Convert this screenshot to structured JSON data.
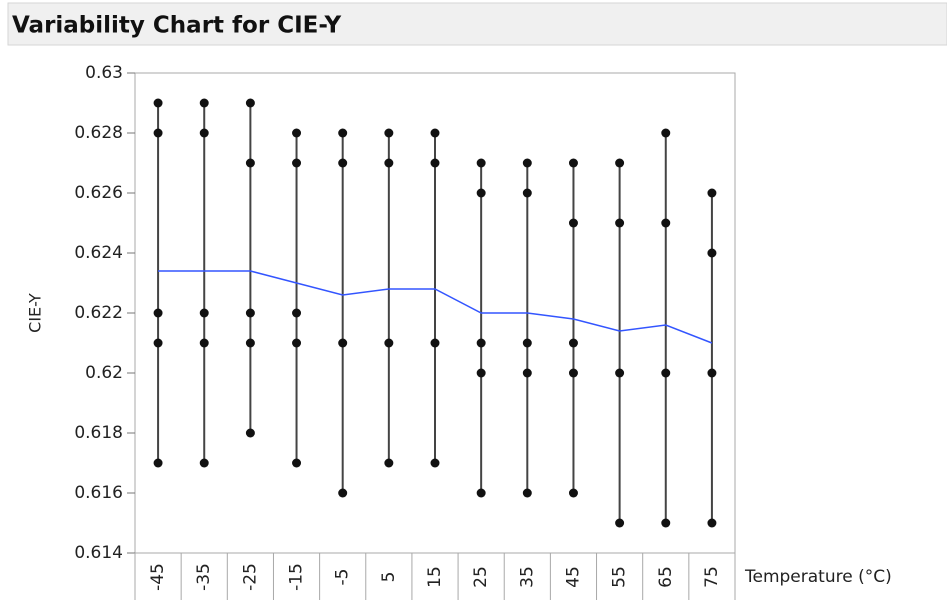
{
  "chart_data": {
    "type": "variability",
    "title": "Variability Chart for CIE-Y",
    "y_label": "CIE-Y",
    "x_label": "Temperature (°C)",
    "categories": [
      "-45",
      "-35",
      "-25",
      "-15",
      "-5",
      "5",
      "15",
      "25",
      "35",
      "45",
      "55",
      "65",
      "75"
    ],
    "points": [
      [
        0.629,
        0.628,
        0.622,
        0.621,
        0.617
      ],
      [
        0.629,
        0.628,
        0.622,
        0.621,
        0.617
      ],
      [
        0.629,
        0.627,
        0.622,
        0.621,
        0.618
      ],
      [
        0.628,
        0.627,
        0.622,
        0.621,
        0.617
      ],
      [
        0.628,
        0.627,
        0.621,
        0.616
      ],
      [
        0.628,
        0.627,
        0.621,
        0.617
      ],
      [
        0.628,
        0.627,
        0.621,
        0.617
      ],
      [
        0.627,
        0.626,
        0.621,
        0.62,
        0.616
      ],
      [
        0.627,
        0.626,
        0.621,
        0.62,
        0.616
      ],
      [
        0.627,
        0.625,
        0.621,
        0.62,
        0.616
      ],
      [
        0.627,
        0.625,
        0.62,
        0.615
      ],
      [
        0.628,
        0.625,
        0.62,
        0.615
      ],
      [
        0.626,
        0.624,
        0.62,
        0.615
      ]
    ],
    "means": [
      0.6234,
      0.6234,
      0.6234,
      0.623,
      0.6226,
      0.6228,
      0.6228,
      0.622,
      0.622,
      0.6218,
      0.6214,
      0.6216,
      0.621
    ],
    "point_color": "#111111",
    "range_color": "#444444",
    "mean_color": "#3355ff",
    "ylim": [
      0.614,
      0.63
    ],
    "yticks": [
      0.614,
      0.616,
      0.618,
      0.62,
      0.622,
      0.624,
      0.626,
      0.628,
      0.63
    ]
  }
}
